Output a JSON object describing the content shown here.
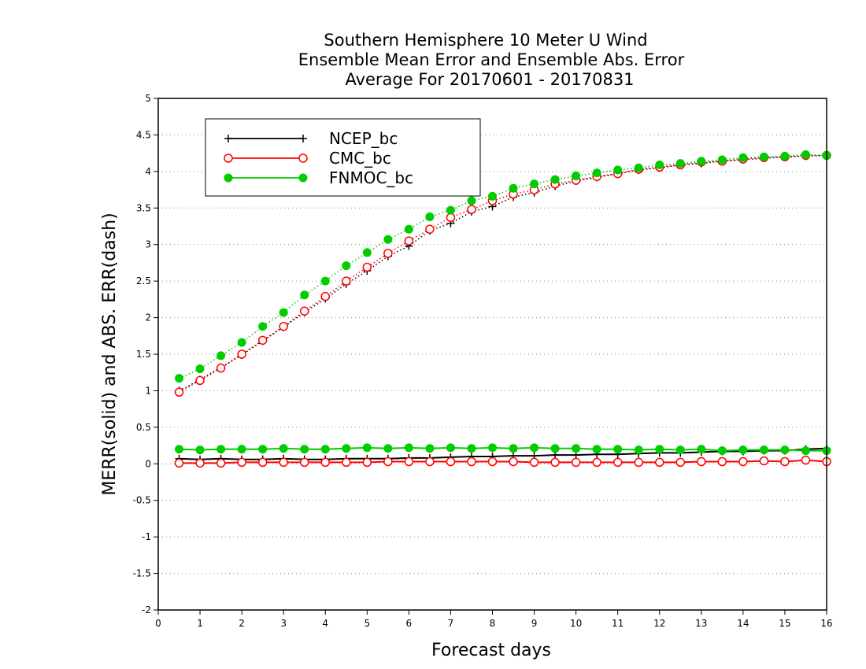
{
  "title": [
    "Southern Hemisphere 10 Meter U Wind",
    "Ensemble Mean Error and Ensemble Abs. Error",
    "Average For 20170601 - 20170831"
  ],
  "chart_data": {
    "type": "line",
    "title": "Southern Hemisphere 10 Meter U Wind / Ensemble Mean Error and Ensemble Abs. Error / Average For 20170601 - 20170831",
    "xlabel": "Forecast days",
    "ylabel": "MERR(solid) and ABS. ERR(dash)",
    "xlim": [
      0,
      16
    ],
    "ylim": [
      -2,
      5
    ],
    "x_ticks": [
      "0",
      "1",
      "2",
      "3",
      "4",
      "5",
      "6",
      "7",
      "8",
      "9",
      "10",
      "11",
      "12",
      "13",
      "14",
      "15",
      "16"
    ],
    "y_ticks": [
      "-2",
      "-1.5",
      "-1",
      "-0.5",
      "0",
      "0.5",
      "1",
      "1.5",
      "2",
      "2.5",
      "3",
      "3.5",
      "4",
      "4.5",
      "5"
    ],
    "grid": "horizontal dotted",
    "legend_position": "top-left",
    "x": [
      0.5,
      1,
      1.5,
      2,
      2.5,
      3,
      3.5,
      4,
      4.5,
      5,
      5.5,
      6,
      6.5,
      7,
      7.5,
      8,
      8.5,
      9,
      9.5,
      10,
      10.5,
      11,
      11.5,
      12,
      12.5,
      13,
      13.5,
      14,
      14.5,
      15,
      15.5,
      16
    ],
    "series": [
      {
        "name": "NCEP_bc",
        "color": "#000000",
        "marker": "plus",
        "abs_error": [
          1.0,
          1.15,
          1.32,
          1.49,
          1.68,
          1.87,
          2.07,
          2.26,
          2.46,
          2.64,
          2.84,
          2.98,
          3.19,
          3.29,
          3.45,
          3.52,
          3.65,
          3.71,
          3.8,
          3.87,
          3.92,
          3.97,
          4.02,
          4.05,
          4.09,
          4.11,
          4.14,
          4.16,
          4.18,
          4.2,
          4.21,
          4.22
        ],
        "mean_error": [
          0.07,
          0.06,
          0.07,
          0.06,
          0.06,
          0.07,
          0.06,
          0.06,
          0.07,
          0.07,
          0.07,
          0.08,
          0.08,
          0.09,
          0.1,
          0.1,
          0.11,
          0.11,
          0.12,
          0.12,
          0.13,
          0.13,
          0.14,
          0.15,
          0.15,
          0.16,
          0.17,
          0.17,
          0.18,
          0.18,
          0.2,
          0.21
        ]
      },
      {
        "name": "CMC_bc",
        "color": "#ff0000",
        "marker": "open-circle",
        "abs_error": [
          0.98,
          1.14,
          1.31,
          1.5,
          1.69,
          1.88,
          2.09,
          2.29,
          2.5,
          2.69,
          2.88,
          3.05,
          3.21,
          3.37,
          3.48,
          3.6,
          3.69,
          3.75,
          3.83,
          3.88,
          3.93,
          3.97,
          4.03,
          4.06,
          4.09,
          4.13,
          4.14,
          4.17,
          4.19,
          4.2,
          4.22,
          4.22
        ],
        "mean_error": [
          0.01,
          0.01,
          0.01,
          0.02,
          0.02,
          0.02,
          0.02,
          0.02,
          0.02,
          0.02,
          0.03,
          0.03,
          0.03,
          0.03,
          0.03,
          0.03,
          0.03,
          0.02,
          0.02,
          0.02,
          0.02,
          0.02,
          0.02,
          0.02,
          0.02,
          0.03,
          0.03,
          0.03,
          0.04,
          0.03,
          0.05,
          0.03
        ]
      },
      {
        "name": "FNMOC_bc",
        "color": "#00cc00",
        "marker": "filled-circle",
        "abs_error": [
          1.17,
          1.3,
          1.48,
          1.66,
          1.88,
          2.07,
          2.31,
          2.5,
          2.71,
          2.89,
          3.07,
          3.21,
          3.38,
          3.47,
          3.6,
          3.66,
          3.77,
          3.83,
          3.89,
          3.94,
          3.98,
          4.02,
          4.05,
          4.09,
          4.11,
          4.14,
          4.16,
          4.19,
          4.2,
          4.21,
          4.23,
          4.22
        ],
        "mean_error": [
          0.2,
          0.19,
          0.2,
          0.2,
          0.2,
          0.21,
          0.2,
          0.2,
          0.21,
          0.22,
          0.21,
          0.22,
          0.21,
          0.22,
          0.21,
          0.22,
          0.21,
          0.22,
          0.21,
          0.21,
          0.2,
          0.2,
          0.19,
          0.2,
          0.19,
          0.2,
          0.18,
          0.19,
          0.19,
          0.19,
          0.18,
          0.18
        ]
      }
    ]
  }
}
